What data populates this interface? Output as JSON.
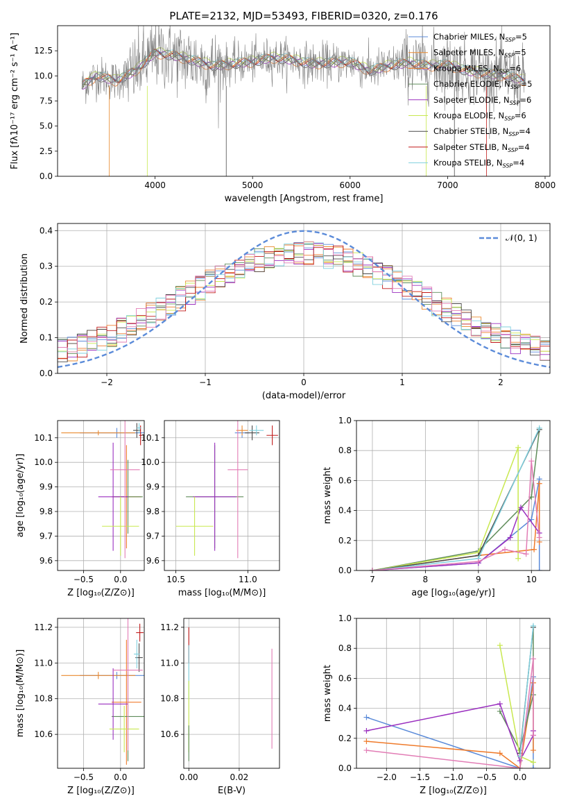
{
  "figure_title": "PLATE=2132, MJD=53493, FIBERID=0320, z=0.176",
  "colors": {
    "axis": "#000000",
    "grid": "#b0b0b0",
    "data_gray": "#808080",
    "ssp": [
      "#5b8bd9",
      "#e9892f",
      "#ef7a2a",
      "#5f8c5a",
      "#9a2fbf",
      "#c8e84f",
      "#4a4a4a",
      "#c01818",
      "#7fd0de"
    ],
    "gauss": "#5b8bd9",
    "extra_pink": "#e27cb5"
  },
  "chart_data": [
    {
      "id": "spectrum",
      "type": "line",
      "title": "PLATE=2132, MJD=53493, FIBERID=0320, z=0.176",
      "xlabel": "wavelength [Angstrom, rest frame]",
      "ylabel": "Flux [fλ10⁻¹⁷ erg cm⁻² s⁻¹ A⁻¹]",
      "xlim": [
        3000,
        8050
      ],
      "ylim": [
        0,
        15
      ],
      "xticks": [
        4000,
        5000,
        6000,
        7000,
        8000
      ],
      "yticks": [
        0.0,
        2.5,
        5.0,
        7.5,
        10.0,
        12.5
      ],
      "ytick_labels": [
        "0.0",
        "2.5",
        "5.0",
        "7.5",
        "10.0",
        "12.5"
      ],
      "grid": false,
      "legend_position": "right",
      "data_range": [
        3250,
        7800
      ],
      "continuum_x": [
        3250,
        3400,
        3600,
        3800,
        4000,
        4200,
        4400,
        4600,
        4800,
        5000,
        5200,
        5400,
        5600,
        5800,
        6000,
        6200,
        6400,
        6600,
        6800,
        7000,
        7200,
        7400,
        7600,
        7800
      ],
      "continuum_y": [
        9.0,
        10.0,
        9.5,
        10.5,
        12.3,
        12.0,
        11.5,
        11.0,
        11.2,
        11.4,
        11.8,
        11.6,
        11.2,
        11.3,
        11.4,
        10.5,
        11.0,
        11.3,
        11.0,
        11.1,
        10.5,
        10.2,
        10.0,
        9.5
      ],
      "legend": [
        {
          "name": "Chabrier MILES, N",
          "sub": "SSP",
          "suffix": "=5"
        },
        {
          "name": "Salpeter MILES, N",
          "sub": "SSP",
          "suffix": "=5"
        },
        {
          "name": "Kroupa MILES, N",
          "sub": "SSP",
          "suffix": "=6"
        },
        {
          "name": "Chabrier ELODIE, N",
          "sub": "SSP",
          "suffix": "=5"
        },
        {
          "name": "Salpeter ELODIE, N",
          "sub": "SSP",
          "suffix": "=6"
        },
        {
          "name": "Kroupa ELODIE, N",
          "sub": "SSP",
          "suffix": "=6"
        },
        {
          "name": "Chabrier STELIB, N",
          "sub": "SSP",
          "suffix": "=4"
        },
        {
          "name": "Salpeter STELIB, N",
          "sub": "SSP",
          "suffix": "=4"
        },
        {
          "name": "Kroupa STELIB, N",
          "sub": "SSP",
          "suffix": "=4"
        }
      ]
    },
    {
      "id": "residuals",
      "type": "histogram",
      "xlabel": "(data-model)/error",
      "ylabel": "Normed distribution",
      "xlim": [
        -2.5,
        2.5
      ],
      "ylim": [
        0,
        0.42
      ],
      "xticks": [
        -2,
        -1,
        0,
        1,
        2
      ],
      "xtick_labels": [
        "−2",
        "−1",
        "0",
        "1",
        "2"
      ],
      "yticks": [
        0.0,
        0.1,
        0.2,
        0.3,
        0.4
      ],
      "ytick_labels": [
        "0.0",
        "0.1",
        "0.2",
        "0.3",
        "0.4"
      ],
      "grid": true,
      "legend_position": "top-right",
      "gauss_label": "𝒩(0, 1)",
      "bins": 50
    },
    {
      "id": "age_vs_Z",
      "type": "errorbar",
      "xlabel": "Z [log₁₀(Z/Z⊙)]",
      "ylabel": "age  [log₁₀(age/yr)]",
      "xlim": [
        -0.85,
        0.32
      ],
      "ylim": [
        9.56,
        10.17
      ],
      "xticks": [
        -0.5,
        0.0
      ],
      "xtick_labels": [
        "−0.5",
        "0.0"
      ],
      "yticks": [
        9.6,
        9.7,
        9.8,
        9.9,
        10.0,
        10.1
      ],
      "ytick_labels": [
        "9.6",
        "9.7",
        "9.8",
        "9.9",
        "10.0",
        "10.1"
      ],
      "grid": true,
      "points": [
        {
          "x": -0.05,
          "y": 10.12,
          "xerr": 0.5,
          "yerr": 0.02,
          "c": 0
        },
        {
          "x": -0.3,
          "y": 10.12,
          "xerr": 0.5,
          "yerr": 0.01,
          "c": 1
        },
        {
          "x": 0.08,
          "y": 9.86,
          "xerr": 0.2,
          "yerr": 0.21,
          "c": 2
        },
        {
          "x": 0.1,
          "y": 9.86,
          "xerr": 0.2,
          "yerr": 0.15,
          "c": 3
        },
        {
          "x": -0.1,
          "y": 9.86,
          "xerr": 0.2,
          "yerr": 0.22,
          "c": 4
        },
        {
          "x": 0.0,
          "y": 9.74,
          "xerr": 0.25,
          "yerr": 0.12,
          "c": 5
        },
        {
          "x": 0.22,
          "y": 10.13,
          "xerr": 0.05,
          "yerr": 0.03,
          "c": 6
        },
        {
          "x": 0.27,
          "y": 10.11,
          "xerr": 0.02,
          "yerr": 0.04,
          "c": 7
        },
        {
          "x": 0.25,
          "y": 10.14,
          "xerr": 0.03,
          "yerr": 0.02,
          "c": 8
        },
        {
          "x": 0.06,
          "y": 9.97,
          "xerr": 0.2,
          "yerr": 0.36,
          "c": "pink"
        }
      ]
    },
    {
      "id": "age_vs_mass",
      "type": "errorbar",
      "xlabel": "mass [log₁₀(M/M⊙)]",
      "ylabel": "",
      "xlim": [
        10.42,
        11.22
      ],
      "ylim": [
        9.56,
        10.17
      ],
      "xticks": [
        10.5,
        11.0
      ],
      "xtick_labels": [
        "10.5",
        "11.0"
      ],
      "yticks": [
        9.6,
        9.7,
        9.8,
        9.9,
        10.0,
        10.1
      ],
      "ytick_labels": [
        "9.6",
        "9.7",
        "9.8",
        "9.9",
        "10.0",
        "10.1"
      ],
      "grid": true,
      "points": [
        {
          "x": 10.96,
          "y": 10.12,
          "xerr": 0.05,
          "yerr": 0.02,
          "c": 0
        },
        {
          "x": 10.96,
          "y": 10.13,
          "xerr": 0.04,
          "yerr": 0.02,
          "c": 1
        },
        {
          "x": 10.77,
          "y": 9.86,
          "xerr": 0.2,
          "yerr": 0.21,
          "c": 3
        },
        {
          "x": 10.77,
          "y": 9.86,
          "xerr": 0.15,
          "yerr": 0.22,
          "c": 4
        },
        {
          "x": 10.63,
          "y": 9.74,
          "xerr": 0.13,
          "yerr": 0.12,
          "c": 5
        },
        {
          "x": 11.03,
          "y": 10.12,
          "xerr": 0.05,
          "yerr": 0.03,
          "c": 6
        },
        {
          "x": 11.17,
          "y": 10.11,
          "xerr": 0.04,
          "yerr": 0.04,
          "c": 7
        },
        {
          "x": 11.06,
          "y": 10.13,
          "xerr": 0.05,
          "yerr": 0.02,
          "c": 8
        },
        {
          "x": 10.93,
          "y": 9.97,
          "xerr": 0.07,
          "yerr": 0.36,
          "c": "pink"
        }
      ]
    },
    {
      "id": "massweight_vs_age",
      "type": "line",
      "xlabel": "age  [log₁₀(age/yr)]",
      "ylabel": "mass weight",
      "xlim": [
        6.7,
        10.35
      ],
      "ylim": [
        0,
        1.0
      ],
      "xticks": [
        7,
        8,
        9,
        10
      ],
      "xtick_labels": [
        "7",
        "8",
        "9",
        "10"
      ],
      "yticks": [
        0.0,
        0.2,
        0.4,
        0.6,
        0.8,
        1.0
      ],
      "ytick_labels": [
        "0.0",
        "0.2",
        "0.4",
        "0.6",
        "0.8",
        "1.0"
      ],
      "grid": true,
      "series": [
        {
          "c": 0,
          "x": [
            7.0,
            9.0,
            10.0,
            10.15,
            10.15
          ],
          "y": [
            0.0,
            0.05,
            0.34,
            0.61,
            0.0
          ]
        },
        {
          "c": 2,
          "x": [
            7.0,
            9.0,
            10.05,
            10.15,
            10.15
          ],
          "y": [
            0.0,
            0.1,
            0.14,
            0.58,
            0.19
          ]
        },
        {
          "c": 3,
          "x": [
            7.0,
            9.0,
            10.0,
            10.15
          ],
          "y": [
            0.0,
            0.13,
            0.49,
            0.94
          ]
        },
        {
          "c": 4,
          "x": [
            7.0,
            9.0,
            9.6,
            9.8,
            10.15
          ],
          "y": [
            0.0,
            0.05,
            0.22,
            0.42,
            0.25
          ]
        },
        {
          "c": 5,
          "x": [
            7.0,
            9.0,
            9.75,
            9.75
          ],
          "y": [
            0.0,
            0.12,
            0.82,
            0.08
          ]
        },
        {
          "c": 6,
          "x": [
            7.0,
            9.0,
            10.15
          ],
          "y": [
            0.0,
            0.1,
            0.94
          ]
        },
        {
          "c": 8,
          "x": [
            7.0,
            9.0,
            10.15
          ],
          "y": [
            0.0,
            0.08,
            0.95
          ]
        },
        {
          "c": "pink",
          "x": [
            7.0,
            9.0,
            9.5,
            9.9,
            10.0,
            10.15
          ],
          "y": [
            0.0,
            0.06,
            0.14,
            0.11,
            0.73,
            0.22
          ]
        }
      ]
    },
    {
      "id": "mass_vs_Z",
      "type": "errorbar",
      "xlabel": "Z [log₁₀(Z/Z⊙)]",
      "ylabel": "mass [log₁₀(M/M⊙)]",
      "xlim": [
        -0.85,
        0.32
      ],
      "ylim": [
        10.41,
        11.25
      ],
      "xticks": [
        -0.5,
        0.0
      ],
      "xtick_labels": [
        "−0.5",
        "0.0"
      ],
      "yticks": [
        10.6,
        10.8,
        11.0,
        11.2
      ],
      "ytick_labels": [
        "10.6",
        "10.8",
        "11.0",
        "11.2"
      ],
      "grid": true,
      "points": [
        {
          "x": -0.05,
          "y": 10.93,
          "xerr": 0.5,
          "yerr": 0.02,
          "c": 0
        },
        {
          "x": -0.3,
          "y": 10.93,
          "xerr": 0.5,
          "yerr": 0.02,
          "c": 1
        },
        {
          "x": 0.08,
          "y": 10.78,
          "xerr": 0.2,
          "yerr": 0.35,
          "c": 2
        },
        {
          "x": 0.1,
          "y": 10.7,
          "xerr": 0.22,
          "yerr": 0.25,
          "c": 3
        },
        {
          "x": -0.1,
          "y": 10.77,
          "xerr": 0.2,
          "yerr": 0.2,
          "c": 4
        },
        {
          "x": 0.05,
          "y": 10.63,
          "xerr": 0.2,
          "yerr": 0.13,
          "c": 5
        },
        {
          "x": 0.25,
          "y": 11.03,
          "xerr": 0.05,
          "yerr": 0.08,
          "c": 6
        },
        {
          "x": 0.26,
          "y": 11.17,
          "xerr": 0.05,
          "yerr": 0.05,
          "c": 7
        },
        {
          "x": 0.22,
          "y": 11.05,
          "xerr": 0.04,
          "yerr": 0.08,
          "c": 8
        },
        {
          "x": 0.1,
          "y": 10.96,
          "xerr": 0.2,
          "yerr": 0.45,
          "c": "pink"
        }
      ]
    },
    {
      "id": "mass_vs_ebv",
      "type": "errorbar",
      "xlabel": "E(B-V)",
      "ylabel": "",
      "xlim": [
        -0.002,
        0.036
      ],
      "ylim": [
        10.41,
        11.25
      ],
      "xticks": [
        0.0,
        0.02
      ],
      "xtick_labels": [
        "0.00",
        "0.02"
      ],
      "yticks": [
        10.6,
        10.8,
        11.0,
        11.2
      ],
      "ytick_labels": [
        "10.6",
        "10.8",
        "11.0",
        "11.2"
      ],
      "grid": true,
      "points": [
        {
          "x": 0.0,
          "y": 11.1,
          "xerr": 0,
          "yerr": 0.1,
          "c": 7
        },
        {
          "x": 0.0,
          "y": 10.95,
          "xerr": 0,
          "yerr": 0.15,
          "c": 8
        },
        {
          "x": 0.0,
          "y": 10.7,
          "xerr": 0,
          "yerr": 0.2,
          "c": 5
        },
        {
          "x": 0.0,
          "y": 10.55,
          "xerr": 0,
          "yerr": 0.1,
          "c": 3
        },
        {
          "x": 0.033,
          "y": 10.8,
          "xerr": 0,
          "yerr": 0.28,
          "c": "pink"
        }
      ]
    },
    {
      "id": "massweight_vs_Z",
      "type": "line",
      "xlabel": "Z [log₁₀(Z/Z⊙)]",
      "ylabel": "mass weight",
      "xlim": [
        -2.45,
        0.45
      ],
      "ylim": [
        0,
        1.0
      ],
      "xticks": [
        -2.0,
        -1.5,
        -1.0,
        -0.5,
        0.0
      ],
      "xtick_labels": [
        "−2.0",
        "−1.5",
        "−1.0",
        "−0.5",
        "0.0"
      ],
      "yticks": [
        0.0,
        0.2,
        0.4,
        0.6,
        0.8,
        1.0
      ],
      "ytick_labels": [
        "0.0",
        "0.2",
        "0.4",
        "0.6",
        "0.8",
        "1.0"
      ],
      "grid": true,
      "series": [
        {
          "c": 0,
          "x": [
            -2.3,
            0.0,
            0.2,
            0.2
          ],
          "y": [
            0.34,
            0.0,
            0.61,
            0.0
          ]
        },
        {
          "c": 2,
          "x": [
            -2.3,
            -0.3,
            0.0,
            0.2,
            0.2
          ],
          "y": [
            0.18,
            0.1,
            0.0,
            0.57,
            0.12
          ]
        },
        {
          "c": 3,
          "x": [
            -0.3,
            0.0,
            0.2,
            0.2
          ],
          "y": [
            0.38,
            0.12,
            0.49,
            0.94
          ]
        },
        {
          "c": 4,
          "x": [
            -2.3,
            -0.3,
            0.0,
            0.2,
            0.2
          ],
          "y": [
            0.25,
            0.43,
            0.05,
            0.22,
            0.25
          ]
        },
        {
          "c": 5,
          "x": [
            -0.3,
            0.0,
            0.2
          ],
          "y": [
            0.82,
            0.08,
            0.04
          ]
        },
        {
          "c": 6,
          "x": [
            0.0,
            0.2
          ],
          "y": [
            0.1,
            0.94
          ]
        },
        {
          "c": 8,
          "x": [
            0.0,
            0.2
          ],
          "y": [
            0.08,
            0.95
          ]
        },
        {
          "c": "pink",
          "x": [
            -2.3,
            0.0,
            0.2,
            0.2
          ],
          "y": [
            0.12,
            0.0,
            0.73,
            0.22
          ]
        }
      ]
    }
  ]
}
